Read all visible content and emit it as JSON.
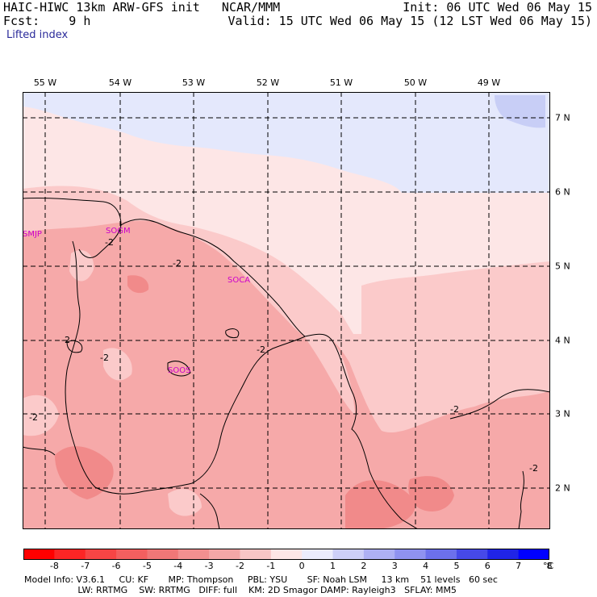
{
  "header": {
    "line1_left": "HAIC-HIWC 13km ARW-GFS init   NCAR/MMM",
    "line1_right": "Init: 06 UTC Wed 06 May 15",
    "line2_left": "Fcst:    9 h",
    "line2_right": "Valid: 15 UTC Wed 06 May 15 (12 LST Wed 06 May 15)",
    "field_name": "Lifted index"
  },
  "map": {
    "longitude_labels": [
      "55 W",
      "54 W",
      "53 W",
      "52 W",
      "51 W",
      "50 W",
      "49 W"
    ],
    "latitude_labels": [
      "7 N",
      "6 N",
      "5 N",
      "4 N",
      "3 N",
      "2 N"
    ],
    "stations": [
      "SMJP",
      "SOGM",
      "SOCA",
      "SOOS"
    ],
    "contour_labels": [
      "-2",
      "-2",
      "-2",
      "-2",
      "-2",
      "-2",
      "-2",
      "-2"
    ],
    "colors": {
      "lightest_red": "#fde6e6",
      "light_red": "#fbcaca",
      "medium_red": "#f6a9a9",
      "dark_red": "#f18a8a",
      "light_blue": "#e4e8fc",
      "blue": "#c8cef6"
    }
  },
  "colorbar": {
    "labels": [
      "-8",
      "-7",
      "-6",
      "-5",
      "-4",
      "-3",
      "-2",
      "-1",
      "0",
      "1",
      "2",
      "3",
      "4",
      "5",
      "6",
      "7",
      "8"
    ],
    "unit": "°C",
    "colors": [
      "#ff0000",
      "#fc2525",
      "#f74545",
      "#f35f5f",
      "#f07777",
      "#f29090",
      "#f4a7a7",
      "#f8c6c6",
      "#fde6e6",
      "#ececfc",
      "#cdcff8",
      "#aeb0f4",
      "#8f92f0",
      "#6c70ec",
      "#4649e8",
      "#2024e6",
      "#0000ff"
    ]
  },
  "footer": {
    "line1": "Model Info: V3.6.1     CU: KF       MP: Thompson     PBL: YSU       SF: Noah LSM     13 km    51 levels   60 sec",
    "line2": "                   LW: RRTMG    SW: RRTMG   DIFF: full    KM: 2D Smagor DAMP: Rayleigh3   SFLAY: MM5"
  }
}
